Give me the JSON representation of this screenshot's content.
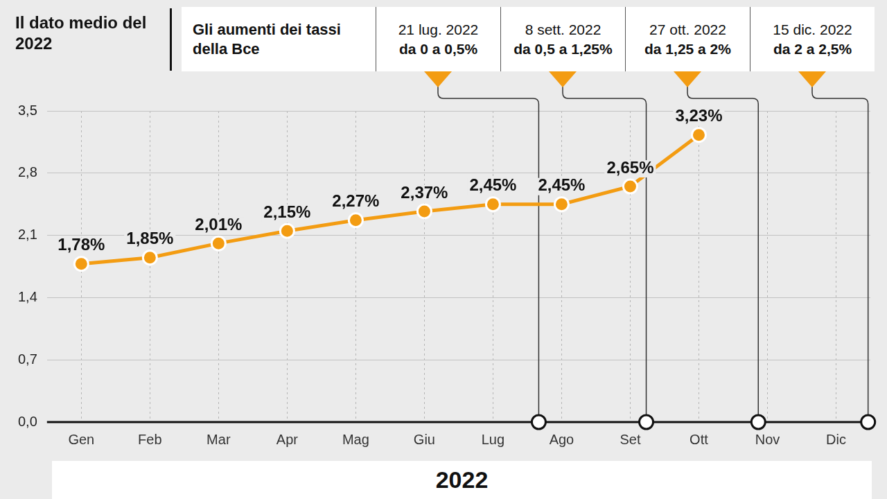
{
  "chart_data": {
    "type": "line",
    "title": "Il dato medio del 2022",
    "events_title": "Gli aumenti dei tassi della Bce",
    "events": [
      {
        "date": "21 lug. 2022",
        "label": "da 0 a 0,5%"
      },
      {
        "date": "8 sett. 2022",
        "label": "da 0,5 a 1,25%"
      },
      {
        "date": "27 ott. 2022",
        "label": "da 1,25 a 2%"
      },
      {
        "date": "15 dic. 2022",
        "label": "da 2 a 2,5%"
      }
    ],
    "x_label": "2022",
    "categories": [
      "Gen",
      "Feb",
      "Mar",
      "Apr",
      "Mag",
      "Giu",
      "Lug",
      "Ago",
      "Set",
      "Ott",
      "Nov",
      "Dic"
    ],
    "values": [
      1.78,
      1.85,
      2.01,
      2.15,
      2.27,
      2.37,
      2.45,
      2.45,
      2.65,
      3.23,
      null,
      null
    ],
    "value_labels": [
      "1,78%",
      "1,85%",
      "2,01%",
      "2,15%",
      "2,27%",
      "2,37%",
      "2,45%",
      "2,45%",
      "2,65%",
      "3,23%",
      null,
      null
    ],
    "color": "#f39c12",
    "marker": "circle",
    "ylim": [
      0,
      3.5
    ],
    "yticks": [
      {
        "value": 0,
        "label": "0,0"
      },
      {
        "value": 0.7,
        "label": "0,7"
      },
      {
        "value": 1.4,
        "label": "1,4"
      },
      {
        "value": 2.1,
        "label": "2,1"
      },
      {
        "value": 2.8,
        "label": "2,8"
      },
      {
        "value": 3.5,
        "label": "3,5"
      }
    ],
    "grid": true,
    "data_labels": true
  }
}
